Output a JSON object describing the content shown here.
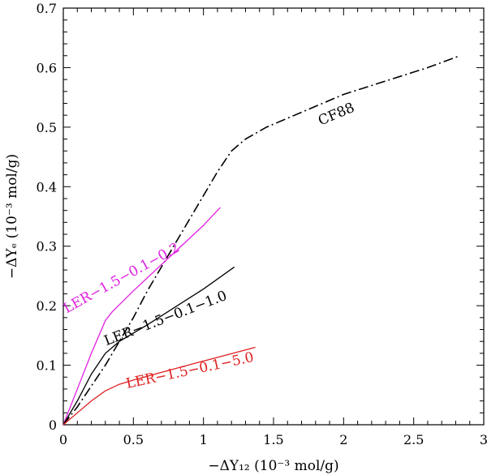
{
  "chart_data": {
    "type": "line",
    "xlabel": "−ΔY₁₂ (10⁻³ mol/g)",
    "ylabel": "−ΔYₑ (10⁻³ mol/g)",
    "xlim": [
      0,
      3
    ],
    "ylim": [
      0,
      0.7
    ],
    "xticks": [
      0,
      0.5,
      1,
      1.5,
      2,
      2.5,
      3
    ],
    "xtick_labels": [
      "0",
      "0.5",
      "1",
      "1.5",
      "2",
      "2.5",
      "3"
    ],
    "yticks": [
      0,
      0.1,
      0.2,
      0.3,
      0.4,
      0.5,
      0.6,
      0.7
    ],
    "ytick_labels": [
      "0",
      "0.1",
      "0.2",
      "0.3",
      "0.4",
      "0.5",
      "0.6",
      "0.7"
    ],
    "grid": false,
    "series": [
      {
        "name": "CF88",
        "color": "#000000",
        "style": "dashdot",
        "x": [
          0,
          0.1,
          0.2,
          0.3,
          0.4,
          0.5,
          0.6,
          0.7,
          0.8,
          0.9,
          1.0,
          1.1,
          1.2,
          1.3,
          1.45,
          1.6,
          1.8,
          2.0,
          2.2,
          2.4,
          2.6,
          2.75,
          2.83
        ],
        "y": [
          0,
          0.03,
          0.065,
          0.1,
          0.14,
          0.18,
          0.225,
          0.265,
          0.305,
          0.345,
          0.385,
          0.425,
          0.46,
          0.48,
          0.5,
          0.515,
          0.535,
          0.555,
          0.57,
          0.585,
          0.6,
          0.613,
          0.62
        ]
      },
      {
        "name": "LER−1.5−0.1−0.2",
        "color": "#e020e0",
        "style": "solid",
        "x": [
          0,
          0.1,
          0.2,
          0.3,
          0.35,
          0.5,
          0.75,
          1.0,
          1.12
        ],
        "y": [
          0,
          0.06,
          0.12,
          0.175,
          0.19,
          0.225,
          0.28,
          0.335,
          0.365
        ]
      },
      {
        "name": "LER−1.5−0.1−1.0",
        "color": "#000000",
        "style": "solid",
        "x": [
          0,
          0.1,
          0.2,
          0.3,
          0.4,
          0.6,
          0.8,
          1.0,
          1.22
        ],
        "y": [
          0,
          0.04,
          0.085,
          0.12,
          0.14,
          0.168,
          0.198,
          0.228,
          0.265
        ]
      },
      {
        "name": "LER−1.5−0.1−5.0",
        "color": "#e02020",
        "style": "solid",
        "x": [
          0,
          0.1,
          0.2,
          0.3,
          0.4,
          0.5,
          0.7,
          1.0,
          1.37
        ],
        "y": [
          0,
          0.02,
          0.04,
          0.057,
          0.068,
          0.075,
          0.088,
          0.107,
          0.13
        ]
      }
    ],
    "annotations": [
      {
        "text": "CF88",
        "color": "#000000",
        "x": 1.96,
        "y": 0.515,
        "angle": -23
      },
      {
        "text": "LER−1.5−0.1−0.2",
        "color": "#e020e0",
        "x": 0.43,
        "y": 0.24,
        "angle": -29
      },
      {
        "text": "LER−1.5−0.1−1.0",
        "color": "#000000",
        "x": 0.74,
        "y": 0.172,
        "angle": -21
      },
      {
        "text": "LER−1.5−0.1−5.0",
        "color": "#e02020",
        "x": 0.91,
        "y": 0.084,
        "angle": -12
      }
    ]
  }
}
